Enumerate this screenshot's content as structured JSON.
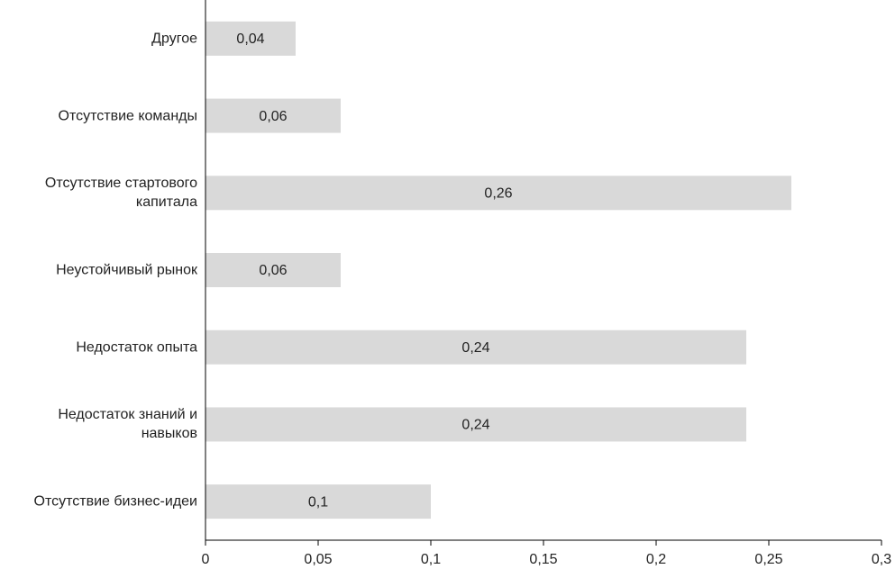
{
  "chart_data": {
    "type": "barh",
    "categories": [
      "Другое",
      "Отсутствие команды",
      "Отсутствие стартового капитала",
      "Неустойчивый рынок",
      "Недостаток опыта",
      "Недостаток знаний и навыков",
      "Отсутствие бизнес-идеи"
    ],
    "values": [
      0.04,
      0.06,
      0.26,
      0.06,
      0.24,
      0.24,
      0.1
    ],
    "value_labels": [
      "0,04",
      "0,06",
      "0,26",
      "0,06",
      "0,24",
      "0,24",
      "0,1"
    ],
    "color": "#d9d9d9",
    "xlim": [
      0,
      0.3
    ],
    "xticks": [
      0,
      {
        "value": 0.05,
        "label": "0,05"
      },
      {
        "value": 0.1,
        "label": "0,1"
      },
      {
        "value": 0.15,
        "label": "0,15"
      },
      {
        "value": 0.2,
        "label": "0,2"
      },
      {
        "value": 0.25,
        "label": "0,25"
      },
      {
        "value": 0.3,
        "label": "0,3"
      }
    ]
  }
}
